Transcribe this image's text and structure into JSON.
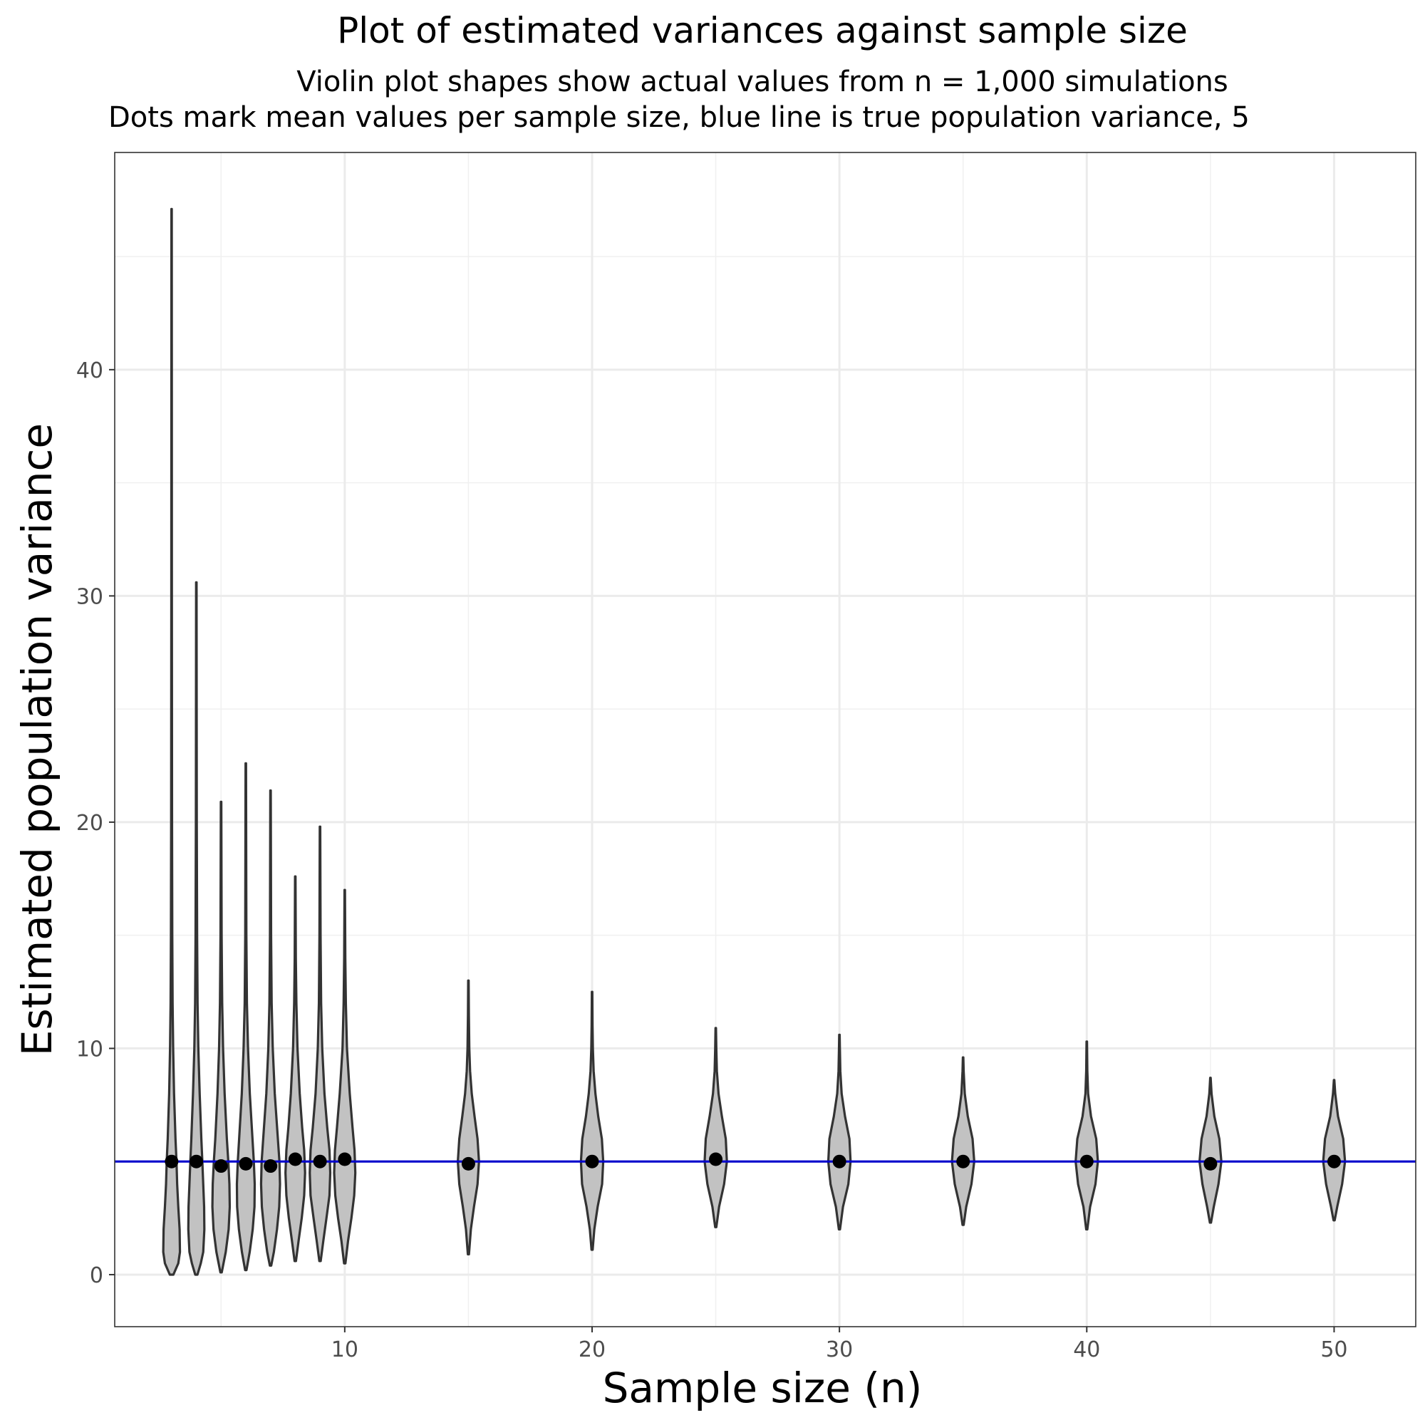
{
  "chart_data": {
    "type": "violin",
    "title": "Plot of estimated variances against sample size",
    "subtitle_lines": [
      "Violin plot shapes show actual values from n = 1,000 simulations",
      "Dots mark mean values per sample size, blue line is true population variance, 5"
    ],
    "xlabel": "Sample size (n)",
    "ylabel": "Estimated population variance",
    "xlim": [
      0.7,
      53.3
    ],
    "ylim": [
      -2.3,
      49.6
    ],
    "x_ticks": [
      10,
      20,
      30,
      40,
      50
    ],
    "y_ticks": [
      0,
      10,
      20,
      30,
      40
    ],
    "x_minor_grid": [
      5,
      15,
      25,
      35,
      45
    ],
    "y_minor_grid": [
      5,
      15,
      25,
      35,
      45
    ],
    "grid": true,
    "reference_line": {
      "y": 5,
      "color": "#0000cc"
    },
    "violin_fill": "#c2c2c2",
    "violin_outline": "#333333",
    "mean_dot_color": "#000000",
    "violins": [
      {
        "n": 3,
        "min": 0.0,
        "max": 47.1,
        "mean": 5.0,
        "profile": [
          [
            0.0,
            0.16
          ],
          [
            0.5,
            0.6
          ],
          [
            1.0,
            0.75
          ],
          [
            2.0,
            0.72
          ],
          [
            3.0,
            0.6
          ],
          [
            4.0,
            0.5
          ],
          [
            5.0,
            0.44
          ],
          [
            6.0,
            0.35
          ],
          [
            8.0,
            0.22
          ],
          [
            10.0,
            0.14
          ],
          [
            12.0,
            0.09
          ],
          [
            15.0,
            0.06
          ],
          [
            20.0,
            0.04
          ],
          [
            30.0,
            0.025
          ],
          [
            40.0,
            0.02
          ],
          [
            47.1,
            0.015
          ]
        ]
      },
      {
        "n": 4,
        "min": 0.0,
        "max": 30.6,
        "mean": 5.0,
        "profile": [
          [
            0.0,
            0.1
          ],
          [
            0.5,
            0.4
          ],
          [
            1.0,
            0.62
          ],
          [
            2.0,
            0.72
          ],
          [
            3.0,
            0.7
          ],
          [
            4.0,
            0.62
          ],
          [
            5.0,
            0.54
          ],
          [
            6.0,
            0.45
          ],
          [
            8.0,
            0.3
          ],
          [
            10.0,
            0.18
          ],
          [
            12.0,
            0.11
          ],
          [
            15.0,
            0.07
          ],
          [
            20.0,
            0.04
          ],
          [
            25.0,
            0.03
          ],
          [
            30.6,
            0.02
          ]
        ]
      },
      {
        "n": 5,
        "min": 0.1,
        "max": 20.9,
        "mean": 4.8,
        "profile": [
          [
            0.1,
            0.06
          ],
          [
            1.0,
            0.42
          ],
          [
            2.0,
            0.68
          ],
          [
            3.0,
            0.78
          ],
          [
            4.0,
            0.75
          ],
          [
            5.0,
            0.65
          ],
          [
            6.0,
            0.52
          ],
          [
            8.0,
            0.32
          ],
          [
            10.0,
            0.18
          ],
          [
            12.0,
            0.1
          ],
          [
            15.0,
            0.05
          ],
          [
            20.9,
            0.02
          ]
        ]
      },
      {
        "n": 6,
        "min": 0.2,
        "max": 22.6,
        "mean": 4.9,
        "profile": [
          [
            0.2,
            0.06
          ],
          [
            1.0,
            0.35
          ],
          [
            2.0,
            0.62
          ],
          [
            3.0,
            0.78
          ],
          [
            4.0,
            0.8
          ],
          [
            5.0,
            0.72
          ],
          [
            6.0,
            0.6
          ],
          [
            8.0,
            0.36
          ],
          [
            10.0,
            0.2
          ],
          [
            12.0,
            0.1
          ],
          [
            15.0,
            0.05
          ],
          [
            22.6,
            0.02
          ]
        ]
      },
      {
        "n": 7,
        "min": 0.4,
        "max": 21.4,
        "mean": 4.8,
        "profile": [
          [
            0.4,
            0.06
          ],
          [
            1.0,
            0.3
          ],
          [
            2.0,
            0.58
          ],
          [
            3.0,
            0.78
          ],
          [
            4.0,
            0.85
          ],
          [
            5.0,
            0.8
          ],
          [
            6.0,
            0.66
          ],
          [
            8.0,
            0.38
          ],
          [
            10.0,
            0.2
          ],
          [
            12.0,
            0.1
          ],
          [
            15.0,
            0.05
          ],
          [
            21.4,
            0.02
          ]
        ]
      },
      {
        "n": 8,
        "min": 0.6,
        "max": 17.6,
        "mean": 5.1,
        "profile": [
          [
            0.6,
            0.06
          ],
          [
            1.5,
            0.3
          ],
          [
            2.5,
            0.58
          ],
          [
            3.5,
            0.8
          ],
          [
            4.5,
            0.88
          ],
          [
            5.5,
            0.8
          ],
          [
            6.5,
            0.62
          ],
          [
            8.0,
            0.4
          ],
          [
            10.0,
            0.2
          ],
          [
            12.0,
            0.1
          ],
          [
            14.0,
            0.05
          ],
          [
            17.6,
            0.02
          ]
        ]
      },
      {
        "n": 9,
        "min": 0.6,
        "max": 19.8,
        "mean": 5.0,
        "profile": [
          [
            0.6,
            0.06
          ],
          [
            1.5,
            0.3
          ],
          [
            2.5,
            0.58
          ],
          [
            3.5,
            0.85
          ],
          [
            4.5,
            0.92
          ],
          [
            5.5,
            0.85
          ],
          [
            6.5,
            0.65
          ],
          [
            8.0,
            0.4
          ],
          [
            10.0,
            0.2
          ],
          [
            12.0,
            0.1
          ],
          [
            15.0,
            0.05
          ],
          [
            19.8,
            0.02
          ]
        ]
      },
      {
        "n": 10,
        "min": 0.5,
        "max": 17.0,
        "mean": 5.1,
        "profile": [
          [
            0.5,
            0.06
          ],
          [
            1.5,
            0.3
          ],
          [
            2.5,
            0.6
          ],
          [
            3.5,
            0.85
          ],
          [
            4.5,
            0.95
          ],
          [
            5.5,
            0.88
          ],
          [
            6.5,
            0.7
          ],
          [
            8.0,
            0.45
          ],
          [
            10.0,
            0.2
          ],
          [
            12.0,
            0.1
          ],
          [
            14.0,
            0.05
          ],
          [
            17.0,
            0.02
          ]
        ]
      },
      {
        "n": 15,
        "min": 0.9,
        "max": 13.0,
        "mean": 4.9,
        "profile": [
          [
            0.9,
            0.05
          ],
          [
            2.0,
            0.22
          ],
          [
            3.0,
            0.5
          ],
          [
            4.0,
            0.82
          ],
          [
            5.0,
            0.95
          ],
          [
            6.0,
            0.82
          ],
          [
            7.0,
            0.55
          ],
          [
            8.0,
            0.3
          ],
          [
            9.0,
            0.15
          ],
          [
            10.0,
            0.08
          ],
          [
            11.5,
            0.04
          ],
          [
            13.0,
            0.02
          ]
        ]
      },
      {
        "n": 20,
        "min": 1.1,
        "max": 12.5,
        "mean": 5.0,
        "profile": [
          [
            1.1,
            0.05
          ],
          [
            2.0,
            0.2
          ],
          [
            3.0,
            0.5
          ],
          [
            4.0,
            0.9
          ],
          [
            5.0,
            1.0
          ],
          [
            6.0,
            0.88
          ],
          [
            7.0,
            0.55
          ],
          [
            8.0,
            0.3
          ],
          [
            9.0,
            0.14
          ],
          [
            10.0,
            0.07
          ],
          [
            11.0,
            0.04
          ],
          [
            12.5,
            0.02
          ]
        ]
      },
      {
        "n": 25,
        "min": 2.1,
        "max": 10.9,
        "mean": 5.1,
        "profile": [
          [
            2.1,
            0.05
          ],
          [
            3.0,
            0.3
          ],
          [
            4.0,
            0.75
          ],
          [
            5.0,
            1.0
          ],
          [
            6.0,
            0.9
          ],
          [
            7.0,
            0.55
          ],
          [
            8.0,
            0.25
          ],
          [
            9.0,
            0.1
          ],
          [
            10.0,
            0.05
          ],
          [
            10.9,
            0.02
          ]
        ]
      },
      {
        "n": 30,
        "min": 2.0,
        "max": 10.6,
        "mean": 5.0,
        "profile": [
          [
            2.0,
            0.05
          ],
          [
            3.0,
            0.32
          ],
          [
            4.0,
            0.8
          ],
          [
            5.0,
            1.0
          ],
          [
            6.0,
            0.9
          ],
          [
            7.0,
            0.5
          ],
          [
            8.0,
            0.2
          ],
          [
            9.0,
            0.08
          ],
          [
            10.0,
            0.04
          ],
          [
            10.6,
            0.02
          ]
        ]
      },
      {
        "n": 35,
        "min": 2.2,
        "max": 9.6,
        "mean": 5.0,
        "profile": [
          [
            2.2,
            0.05
          ],
          [
            3.0,
            0.28
          ],
          [
            4.0,
            0.75
          ],
          [
            5.0,
            1.0
          ],
          [
            6.0,
            0.85
          ],
          [
            7.0,
            0.42
          ],
          [
            8.0,
            0.15
          ],
          [
            9.0,
            0.05
          ],
          [
            9.6,
            0.02
          ]
        ]
      },
      {
        "n": 40,
        "min": 2.0,
        "max": 10.3,
        "mean": 5.0,
        "profile": [
          [
            2.0,
            0.05
          ],
          [
            3.0,
            0.3
          ],
          [
            4.0,
            0.78
          ],
          [
            5.0,
            1.0
          ],
          [
            6.0,
            0.85
          ],
          [
            7.0,
            0.38
          ],
          [
            8.0,
            0.12
          ],
          [
            9.0,
            0.05
          ],
          [
            10.3,
            0.02
          ]
        ]
      },
      {
        "n": 45,
        "min": 2.3,
        "max": 8.7,
        "mean": 4.9,
        "profile": [
          [
            2.3,
            0.05
          ],
          [
            3.0,
            0.3
          ],
          [
            4.0,
            0.72
          ],
          [
            5.0,
            0.98
          ],
          [
            6.0,
            0.8
          ],
          [
            7.0,
            0.35
          ],
          [
            8.0,
            0.1
          ],
          [
            8.7,
            0.02
          ]
        ]
      },
      {
        "n": 50,
        "min": 2.4,
        "max": 8.6,
        "mean": 5.0,
        "profile": [
          [
            2.4,
            0.05
          ],
          [
            3.0,
            0.28
          ],
          [
            4.0,
            0.72
          ],
          [
            5.0,
            0.98
          ],
          [
            6.0,
            0.82
          ],
          [
            7.0,
            0.35
          ],
          [
            8.0,
            0.1
          ],
          [
            8.6,
            0.02
          ]
        ]
      }
    ]
  }
}
